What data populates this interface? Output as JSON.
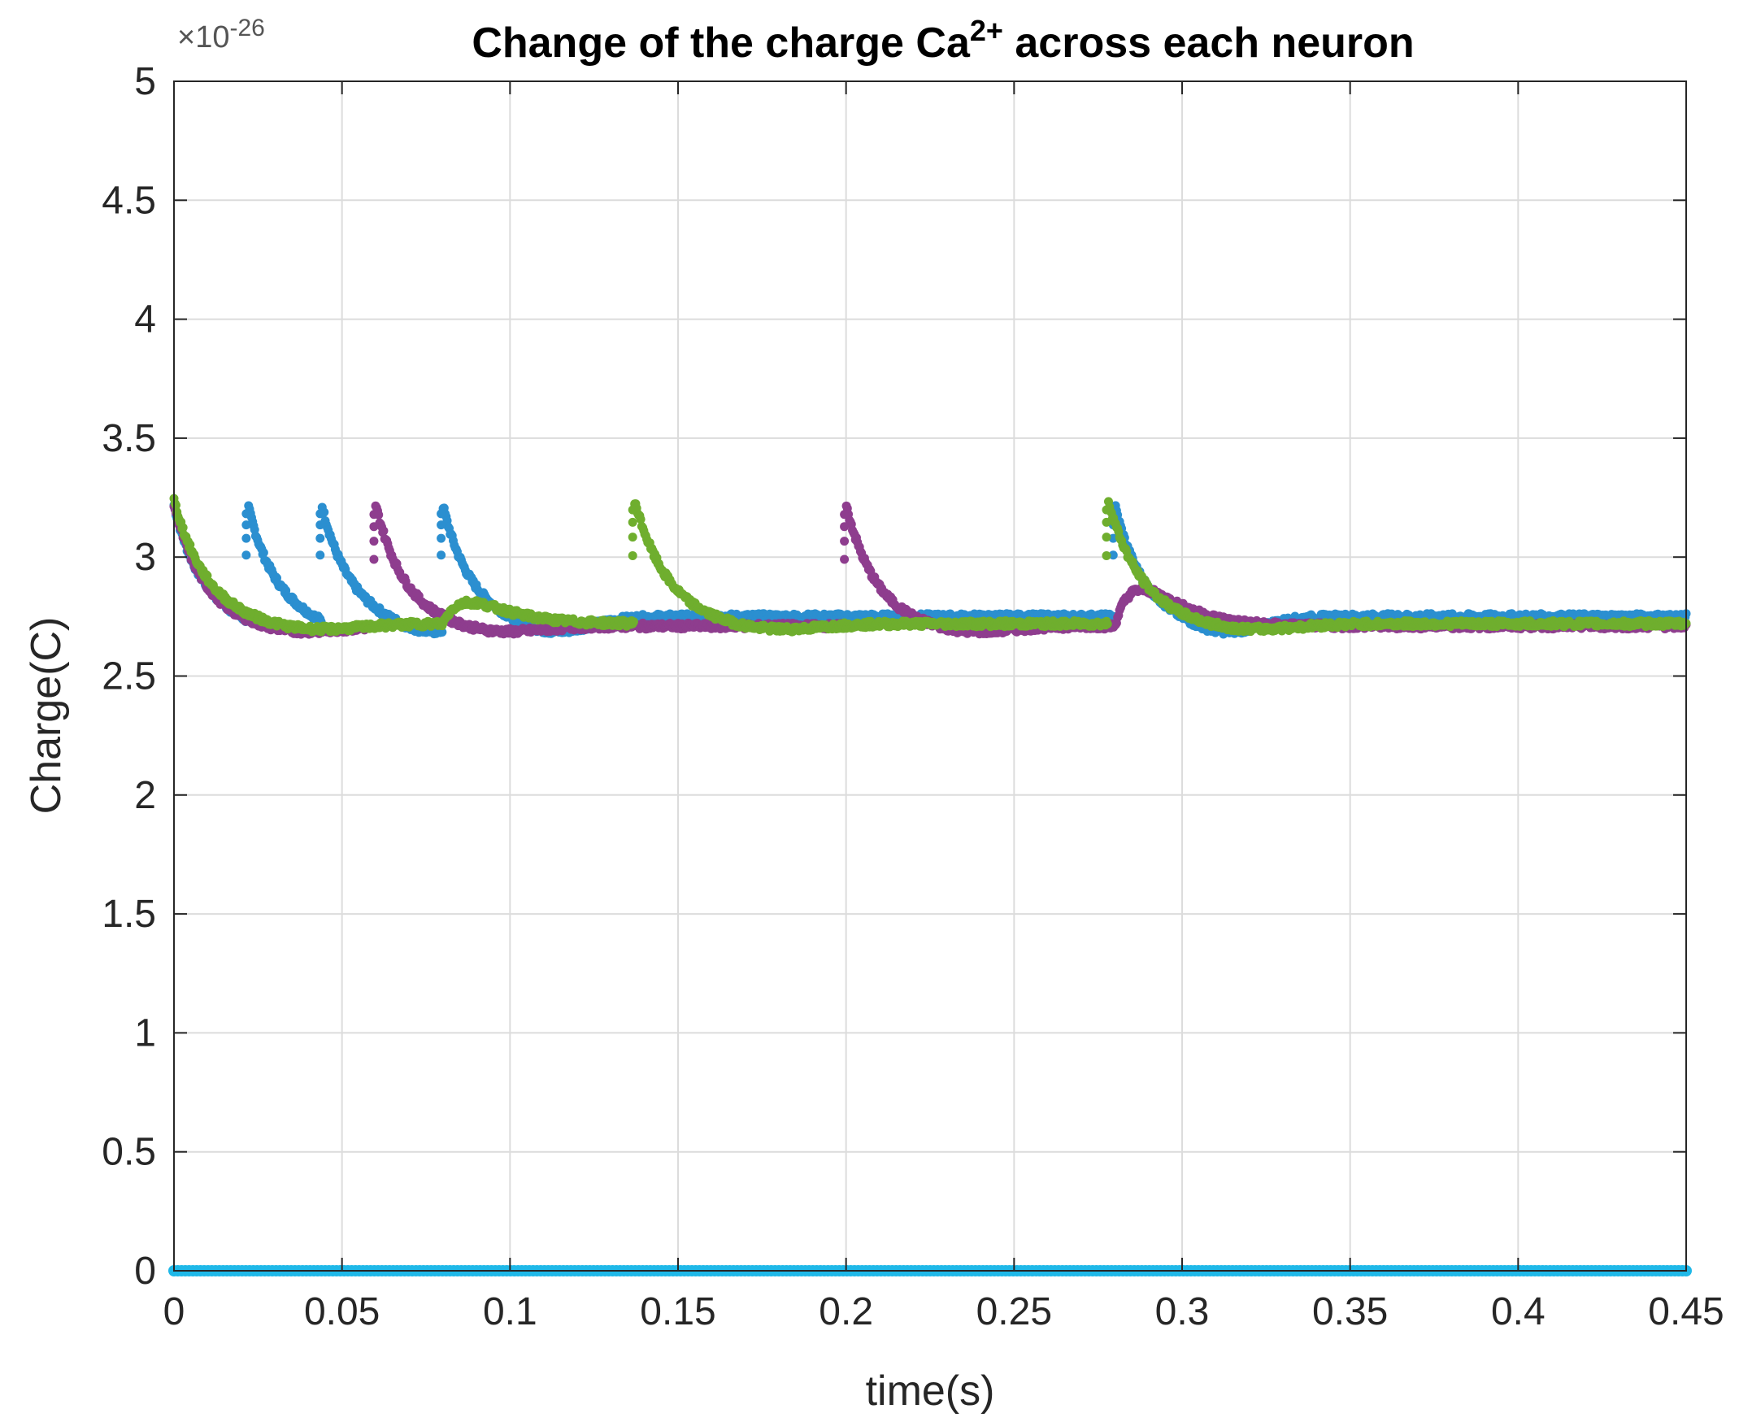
{
  "chart_data": {
    "type": "scatter",
    "title_prefix": "Change of the charge Ca",
    "title_superscript": "2+",
    "title_suffix": " across each neuron",
    "xlabel": "time(s)",
    "ylabel": "Charge(C)",
    "y_multiplier_base": "×10",
    "y_multiplier_exponent": "-26",
    "xlim": [
      0,
      0.45
    ],
    "ylim": [
      0,
      5
    ],
    "xticks": [
      0,
      0.05,
      0.1,
      0.15,
      0.2,
      0.25,
      0.3,
      0.35,
      0.4,
      0.45
    ],
    "xtick_labels": [
      "0",
      "0.05",
      "0.1",
      "0.15",
      "0.2",
      "0.25",
      "0.3",
      "0.35",
      "0.4",
      "0.45"
    ],
    "yticks": [
      0,
      0.5,
      1,
      1.5,
      2,
      2.5,
      3,
      3.5,
      4,
      4.5,
      5
    ],
    "ytick_labels": [
      "0",
      "0.5",
      "1",
      "1.5",
      "2",
      "2.5",
      "3",
      "3.5",
      "4",
      "4.5",
      "5"
    ],
    "grid": true,
    "series": [
      {
        "color": "#2b8fd0",
        "spike_times": [
          0.0,
          0.022,
          0.044,
          0.08,
          0.28
        ],
        "peak": 3.22,
        "baseline": 2.75,
        "trough": 2.68,
        "decay_s": 0.008
      },
      {
        "color": "#8e3d8e",
        "spike_times": [
          0.0,
          0.06,
          0.2
        ],
        "bump_times": [
          0.28
        ],
        "peak": 3.22,
        "baseline": 2.71,
        "trough": 2.68,
        "bump_peak": 2.88,
        "decay_s": 0.009
      },
      {
        "color": "#6fae2e",
        "spike_times": [
          0.0,
          0.137,
          0.278
        ],
        "bump_times": [
          0.08
        ],
        "peak": 3.24,
        "baseline": 2.72,
        "trough": 2.69,
        "bump_peak": 2.82,
        "decay_s": 0.01
      },
      {
        "color": "#1fb8e8",
        "constant": 0.0
      }
    ]
  }
}
